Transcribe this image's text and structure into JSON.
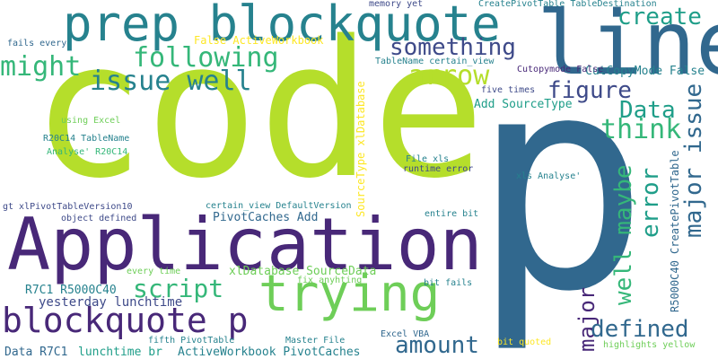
{
  "words": [
    {
      "text": "code",
      "color": "#b5de2b"
    },
    {
      "text": "p",
      "color": "#31688e"
    },
    {
      "text": "Application",
      "color": "#482878"
    },
    {
      "text": "line",
      "color": "#31688e"
    },
    {
      "text": "prep blockquote",
      "color": "#26828e"
    },
    {
      "text": "trying",
      "color": "#6ece58"
    },
    {
      "text": "blockquote p",
      "color": "#482878"
    },
    {
      "text": "something",
      "color": "#3e4a89"
    },
    {
      "text": "following",
      "color": "#35b779"
    },
    {
      "text": "might",
      "color": "#35b779"
    },
    {
      "text": "issue well",
      "color": "#26828e"
    },
    {
      "text": "create",
      "color": "#1f9e89"
    },
    {
      "text": "arrow",
      "color": "#b5de2b"
    },
    {
      "text": "figure",
      "color": "#3e4a89"
    },
    {
      "text": "Data",
      "color": "#1f9e89"
    },
    {
      "text": "think",
      "color": "#35b779"
    },
    {
      "text": "major issue",
      "color": "#31688e"
    },
    {
      "text": "error",
      "color": "#1f9e89"
    },
    {
      "text": "well maybe",
      "color": "#35b779"
    },
    {
      "text": "major",
      "color": "#482878"
    },
    {
      "text": "script",
      "color": "#35b779"
    },
    {
      "text": "defined",
      "color": "#31688e"
    },
    {
      "text": "amount",
      "color": "#31688e"
    },
    {
      "text": "yesterday lunchtime",
      "color": "#3e4a89"
    },
    {
      "text": "CutCopyMode False",
      "color": "#26828e"
    },
    {
      "text": "Add SourceType",
      "color": "#1f9e89"
    },
    {
      "text": "PivotCaches Add",
      "color": "#31688e"
    },
    {
      "text": "xlDatabase SourceData",
      "color": "#6ece58"
    },
    {
      "text": "R7C1 R5000C40",
      "color": "#26828e"
    },
    {
      "text": "Data R7C1",
      "color": "#31688e"
    },
    {
      "text": "lunchtime br",
      "color": "#1f9e89"
    },
    {
      "text": "ActiveWorkbook PivotCaches",
      "color": "#26828e"
    },
    {
      "text": "False ActiveWorkbook",
      "color": "#fde725"
    },
    {
      "text": "CreatePivotTable TableDestination",
      "color": "#26828e"
    },
    {
      "text": "memory yet",
      "color": "#3e4a89"
    },
    {
      "text": "fails every",
      "color": "#31688e"
    },
    {
      "text": "TableName certain_view",
      "color": "#26828e"
    },
    {
      "text": "Cutopymode False",
      "color": "#482878"
    },
    {
      "text": "five times",
      "color": "#3e4a89"
    },
    {
      "text": "using Excel",
      "color": "#6ece58"
    },
    {
      "text": "R20C14 TableName",
      "color": "#26828e"
    },
    {
      "text": "Analyse' R20C14",
      "color": "#35b779"
    },
    {
      "text": "File xls",
      "color": "#26828e"
    },
    {
      "text": "runtime error",
      "color": "#3e4a89"
    },
    {
      "text": "xls Analyse'",
      "color": "#26828e"
    },
    {
      "text": "gt xlPivotTableVersion10",
      "color": "#3e4a89"
    },
    {
      "text": "certain_view DefaultVersion",
      "color": "#26828e"
    },
    {
      "text": "object defined",
      "color": "#3e4a89"
    },
    {
      "text": "entire bit",
      "color": "#26828e"
    },
    {
      "text": "every time",
      "color": "#6ece58"
    },
    {
      "text": "fix anyhting",
      "color": "#6ece58"
    },
    {
      "text": "bit fails",
      "color": "#26828e"
    },
    {
      "text": "Master File",
      "color": "#26828e"
    },
    {
      "text": "Excel VBA",
      "color": "#31688e"
    },
    {
      "text": "fifth PivotTable",
      "color": "#26828e"
    },
    {
      "text": "bit quoted",
      "color": "#fde725"
    },
    {
      "text": "highlights yellow",
      "color": "#6ece58"
    },
    {
      "text": "SourceType xlDatabase",
      "color": "#fde725"
    },
    {
      "text": "R5000C40 CreatePivotTable",
      "color": "#31688e"
    }
  ]
}
